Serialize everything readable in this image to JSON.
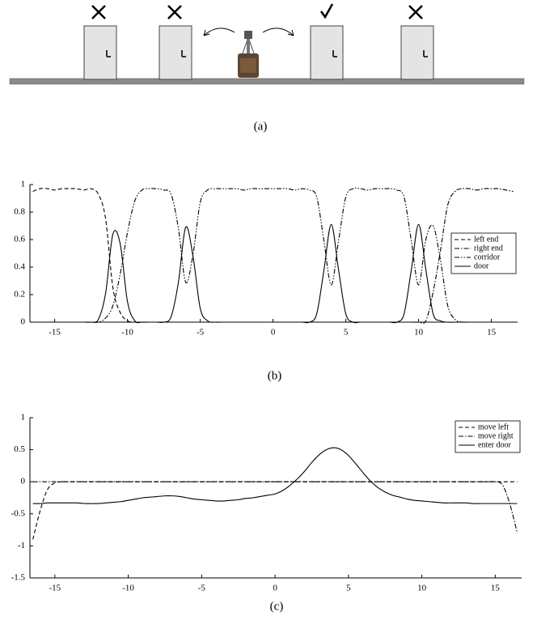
{
  "illustration": {
    "caption": "(a)"
  },
  "chart_data": [
    {
      "type": "line",
      "caption": "(b)",
      "x": [
        -16.5,
        -16,
        -15.5,
        -15,
        -14.5,
        -14,
        -13.5,
        -13,
        -12.5,
        -12,
        -11.5,
        -11,
        -10.5,
        -10,
        -9.5,
        -9,
        -8.5,
        -8,
        -7.5,
        -7,
        -6.5,
        -6,
        -5.5,
        -5,
        -4.5,
        -4,
        -3.5,
        -3,
        -2.5,
        -2,
        -1.5,
        -1,
        -0.5,
        0,
        0.5,
        1,
        1.5,
        2,
        2.5,
        3,
        3.5,
        4,
        4.5,
        5,
        5.5,
        6,
        6.5,
        7,
        7.5,
        8,
        8.5,
        9,
        9.5,
        10,
        10.5,
        11,
        11.5,
        12,
        12.5,
        13,
        13.5,
        14,
        14.5,
        15,
        15.5,
        16,
        16.5
      ],
      "series": [
        {
          "name": "left end",
          "color": "#000000",
          "linestyle": "dashed",
          "values": [
            0.95,
            0.97,
            0.97,
            0.96,
            0.97,
            0.97,
            0.97,
            0.96,
            0.97,
            0.93,
            0.75,
            0.25,
            0.07,
            0.01,
            0,
            0,
            0,
            0,
            0,
            0,
            0,
            0,
            0,
            0,
            0,
            0,
            0,
            0,
            0,
            0,
            0,
            0,
            0,
            0,
            0,
            0,
            0,
            0,
            0,
            0,
            0,
            0,
            0,
            0,
            0,
            0,
            0,
            0,
            0,
            0,
            0,
            0,
            0,
            0,
            0,
            0,
            0,
            0,
            0,
            0,
            0,
            0,
            0,
            0,
            0,
            0,
            0
          ]
        },
        {
          "name": "right end",
          "color": "#000000",
          "linestyle": "dashdot",
          "values": [
            0,
            0,
            0,
            0,
            0,
            0,
            0,
            0,
            0,
            0,
            0,
            0,
            0,
            0,
            0,
            0,
            0,
            0,
            0,
            0,
            0,
            0,
            0,
            0,
            0,
            0,
            0,
            0,
            0,
            0,
            0,
            0,
            0,
            0,
            0,
            0,
            0,
            0,
            0,
            0,
            0,
            0,
            0,
            0,
            0,
            0,
            0,
            0,
            0,
            0,
            0,
            0,
            0,
            0,
            0.01,
            0.22,
            0.52,
            0.85,
            0.95,
            0.97,
            0.97,
            0.96,
            0.97,
            0.97,
            0.97,
            0.96,
            0.95
          ]
        },
        {
          "name": "corridor",
          "color": "#000000",
          "linestyle": "dashdotdot",
          "values": [
            0,
            0,
            0,
            0,
            0,
            0,
            0,
            0,
            0,
            0,
            0.03,
            0.12,
            0.35,
            0.65,
            0.88,
            0.96,
            0.97,
            0.97,
            0.96,
            0.93,
            0.68,
            0.29,
            0.49,
            0.87,
            0.96,
            0.97,
            0.97,
            0.97,
            0.97,
            0.96,
            0.97,
            0.97,
            0.97,
            0.97,
            0.97,
            0.97,
            0.96,
            0.97,
            0.96,
            0.91,
            0.59,
            0.27,
            0.59,
            0.91,
            0.97,
            0.97,
            0.96,
            0.97,
            0.97,
            0.97,
            0.96,
            0.91,
            0.59,
            0.27,
            0.6,
            0.7,
            0.45,
            0.12,
            0.02,
            0,
            0,
            0,
            0,
            0,
            0,
            0,
            0
          ]
        },
        {
          "name": "door",
          "color": "#000000",
          "linestyle": "solid",
          "values": [
            0,
            0,
            0,
            0,
            0,
            0,
            0,
            0,
            0,
            0.02,
            0.21,
            0.64,
            0.57,
            0.15,
            0.01,
            0,
            0,
            0,
            0,
            0.04,
            0.29,
            0.69,
            0.48,
            0.1,
            0.01,
            0,
            0,
            0,
            0,
            0,
            0,
            0,
            0,
            0,
            0,
            0,
            0,
            0,
            0,
            0.06,
            0.38,
            0.71,
            0.38,
            0.06,
            0,
            0,
            0,
            0,
            0,
            0,
            0,
            0.06,
            0.38,
            0.71,
            0.38,
            0.06,
            0.01,
            0,
            0,
            0,
            0,
            0,
            0,
            0,
            0,
            0,
            0
          ]
        }
      ],
      "xlim": [
        -16.7,
        16.8
      ],
      "ylim": [
        0,
        1
      ],
      "xticks": [
        -15,
        -10,
        -5,
        0,
        5,
        10,
        15
      ],
      "yticks": [
        0,
        0.2,
        0.4,
        0.6,
        0.8,
        1
      ],
      "legend": "center right"
    },
    {
      "type": "line",
      "caption": "(c)",
      "x": [
        -16.5,
        -16,
        -15.5,
        -15,
        -14.5,
        -14,
        -13.5,
        -13,
        -12.5,
        -12,
        -11.5,
        -11,
        -10.5,
        -10,
        -9.5,
        -9,
        -8.5,
        -8,
        -7.5,
        -7,
        -6.5,
        -6,
        -5.5,
        -5,
        -4.5,
        -4,
        -3.5,
        -3,
        -2.5,
        -2,
        -1.5,
        -1,
        -0.5,
        0,
        0.5,
        1,
        1.5,
        2,
        2.5,
        3,
        3.5,
        4,
        4.5,
        5,
        5.5,
        6,
        6.5,
        7,
        7.5,
        8,
        8.5,
        9,
        9.5,
        10,
        10.5,
        11,
        11.5,
        12,
        12.5,
        13,
        13.5,
        14,
        14.5,
        15,
        15.5,
        16,
        16.5
      ],
      "series": [
        {
          "name": "move left",
          "color": "#000000",
          "linestyle": "dashed",
          "values": [
            -0.9,
            -0.45,
            -0.12,
            -0.02,
            0,
            0,
            0,
            0,
            0,
            0,
            0,
            0,
            0,
            0,
            0,
            0,
            0,
            0,
            0,
            0,
            0,
            0,
            0,
            0,
            0,
            0,
            0,
            0,
            0,
            0,
            0,
            0,
            0,
            0,
            0,
            0,
            0,
            0,
            0,
            0,
            0,
            0,
            0,
            0,
            0,
            0,
            0,
            0,
            0,
            0,
            0,
            0,
            0,
            0,
            0,
            0,
            0,
            0,
            0,
            0,
            0,
            0,
            0,
            0,
            0,
            0,
            0
          ]
        },
        {
          "name": "move right",
          "color": "#000000",
          "linestyle": "dashdot",
          "values": [
            0,
            0,
            0,
            0,
            0,
            0,
            0,
            0,
            0,
            0,
            0,
            0,
            0,
            0,
            0,
            0,
            0,
            0,
            0,
            0,
            0,
            0,
            0,
            0,
            0,
            0,
            0,
            0,
            0,
            0,
            0,
            0,
            0,
            0,
            0,
            0,
            0,
            0,
            0,
            0,
            0,
            0,
            0,
            0,
            0,
            0,
            0,
            0,
            0,
            0,
            0,
            0,
            0,
            0,
            0,
            0,
            0,
            0,
            0,
            0,
            0,
            0,
            0,
            0,
            -0.05,
            -0.35,
            -0.8
          ]
        },
        {
          "name": "enter door",
          "color": "#000000",
          "linestyle": "solid",
          "values": [
            -0.34,
            -0.34,
            -0.33,
            -0.33,
            -0.33,
            -0.33,
            -0.33,
            -0.34,
            -0.34,
            -0.34,
            -0.33,
            -0.32,
            -0.31,
            -0.29,
            -0.27,
            -0.25,
            -0.24,
            -0.23,
            -0.22,
            -0.22,
            -0.23,
            -0.25,
            -0.27,
            -0.28,
            -0.29,
            -0.3,
            -0.3,
            -0.29,
            -0.28,
            -0.26,
            -0.25,
            -0.23,
            -0.21,
            -0.19,
            -0.14,
            -0.06,
            0.04,
            0.16,
            0.3,
            0.42,
            0.5,
            0.53,
            0.5,
            0.41,
            0.28,
            0.14,
            0.01,
            -0.09,
            -0.16,
            -0.21,
            -0.24,
            -0.27,
            -0.29,
            -0.3,
            -0.31,
            -0.32,
            -0.33,
            -0.33,
            -0.33,
            -0.33,
            -0.34,
            -0.34,
            -0.34,
            -0.34,
            -0.34,
            -0.34,
            -0.34
          ]
        }
      ],
      "xlim": [
        -16.7,
        16.8
      ],
      "ylim": [
        -1.5,
        1
      ],
      "xticks": [
        -15,
        -10,
        -5,
        0,
        5,
        10,
        15
      ],
      "yticks": [
        -1.5,
        -1,
        -0.5,
        0,
        0.5,
        1
      ],
      "legend": "upper right"
    }
  ]
}
